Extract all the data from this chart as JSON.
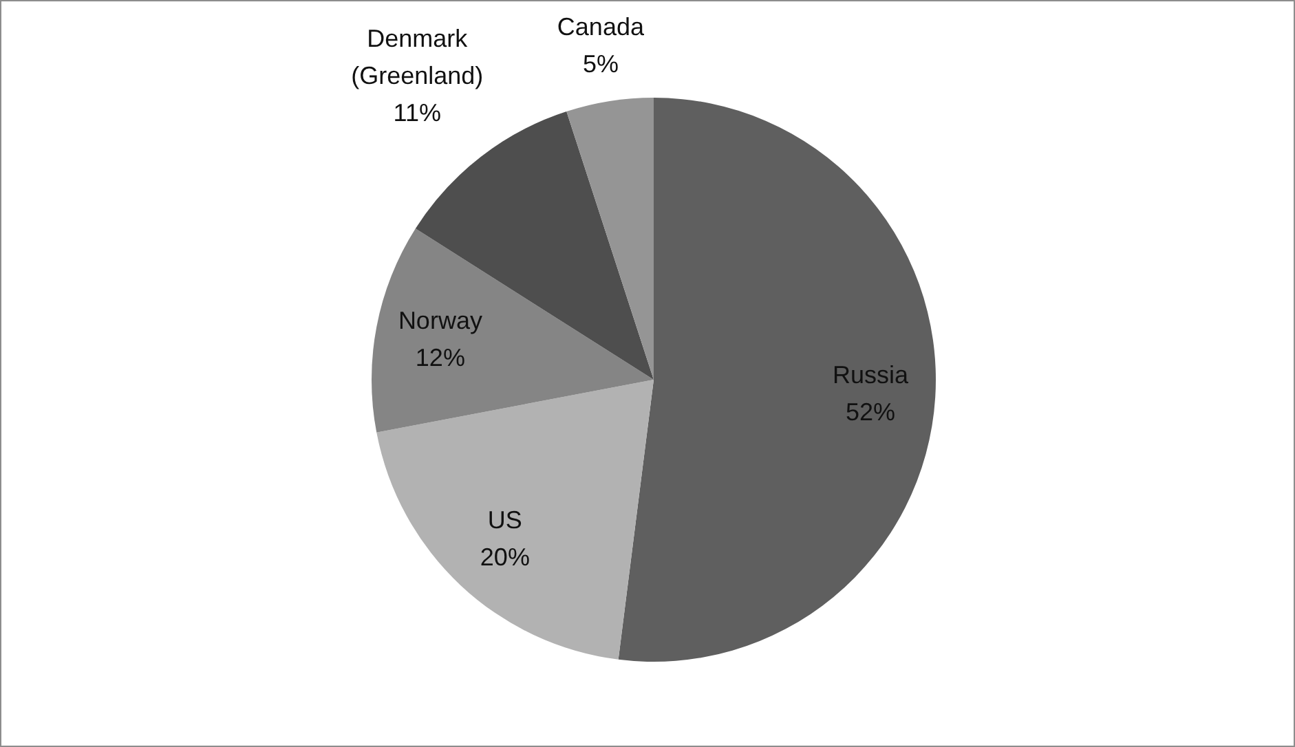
{
  "chart_data": {
    "type": "pie",
    "categories": [
      "Russia",
      "US",
      "Norway",
      "Denmark (Greenland)",
      "Canada"
    ],
    "values": [
      52,
      20,
      12,
      11,
      5
    ],
    "colors": [
      "#5f5f5f",
      "#b2b2b2",
      "#858585",
      "#4e4e4e",
      "#959595"
    ],
    "value_labels": [
      "52%",
      "20%",
      "12%",
      "11%",
      "5%"
    ]
  }
}
